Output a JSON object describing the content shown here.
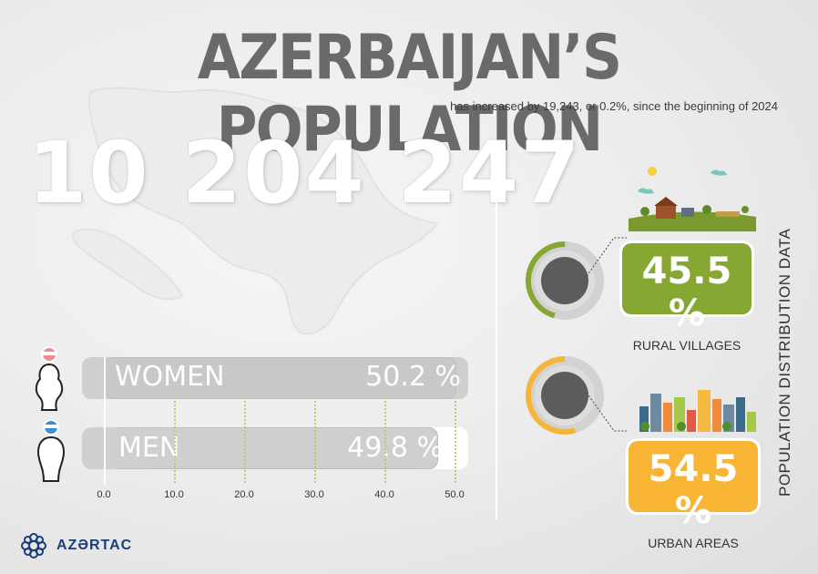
{
  "title": "AZERBAIJAN’S POPULATION",
  "subtitle": "has increased by 19,243, or 0.2%, since the beginning of 2024",
  "total_population": "10 204 247",
  "gender": {
    "women_label": "WOMEN",
    "women_value": "50.2 %",
    "men_label": "MEN",
    "men_value": "49.8 %"
  },
  "axis_ticks": [
    "0.0",
    "10.0",
    "20.0",
    "30.0",
    "40.0",
    "50.0"
  ],
  "distribution": {
    "rural_value": "45.5 %",
    "rural_label": "RURAL VILLAGES",
    "urban_value": "54.5 %",
    "urban_label": "URBAN AREAS",
    "vertical_title": "POPULATION DISTRIBUTION DATA"
  },
  "logo": "AZƏRTAC",
  "colors": {
    "rural": "#86a832",
    "urban": "#f7b435",
    "title": "#6a6a6a"
  },
  "chart_data": [
    {
      "type": "bar",
      "orientation": "horizontal",
      "categories": [
        "WOMEN",
        "MEN"
      ],
      "values": [
        50.2,
        49.8
      ],
      "xlim": [
        0,
        50
      ],
      "ticks": [
        0,
        10,
        20,
        30,
        40,
        50
      ]
    },
    {
      "type": "pie",
      "categories": [
        "RURAL VILLAGES",
        "URBAN AREAS"
      ],
      "values": [
        45.5,
        54.5
      ]
    }
  ]
}
